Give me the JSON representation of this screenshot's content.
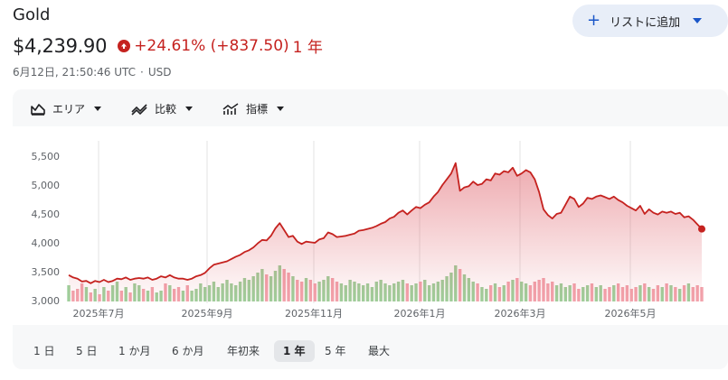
{
  "header": {
    "title": "Gold",
    "price": "$4,239.90",
    "change": "+24.61% (+837.50)",
    "change_period": "1 年",
    "timestamp": "6月12日, 21:50:46 UTC",
    "separator": "·",
    "currency": "USD",
    "follow_label": "リストに追加",
    "colors": {
      "down": "#c5221f",
      "accent": "#1a56c8"
    }
  },
  "toolbar": {
    "area_label": "エリア",
    "compare_label": "比較",
    "indicator_label": "指標"
  },
  "ranges": [
    "1 日",
    "5 日",
    "1 か月",
    "6 か月",
    "年初来",
    "1 年",
    "5 年",
    "最大"
  ],
  "active_range": "1 年",
  "chart_data": {
    "type": "area",
    "y_ticks": [
      "5,500",
      "5,000",
      "4,500",
      "4,000",
      "3,500",
      "3,000"
    ],
    "ylim": [
      3000,
      5500
    ],
    "x_labels": [
      "2025年7月",
      "2025年9月",
      "2025年11月",
      "2026年1月",
      "2026年3月",
      "2026年5月"
    ],
    "line_color": "#c5221f",
    "points": [
      3440,
      3400,
      3380,
      3330,
      3340,
      3300,
      3340,
      3320,
      3360,
      3320,
      3340,
      3380,
      3370,
      3400,
      3360,
      3380,
      3390,
      3380,
      3400,
      3360,
      3380,
      3420,
      3400,
      3440,
      3400,
      3380,
      3380,
      3360,
      3380,
      3420,
      3440,
      3480,
      3560,
      3620,
      3640,
      3660,
      3680,
      3720,
      3760,
      3790,
      3840,
      3870,
      3920,
      3990,
      4050,
      4040,
      4120,
      4250,
      4340,
      4220,
      4100,
      4120,
      4020,
      3980,
      4020,
      4010,
      4000,
      4060,
      4080,
      4180,
      4150,
      4100,
      4110,
      4120,
      4140,
      4160,
      4210,
      4220,
      4240,
      4260,
      4290,
      4330,
      4360,
      4420,
      4450,
      4520,
      4560,
      4490,
      4560,
      4620,
      4600,
      4660,
      4700,
      4800,
      4880,
      5000,
      5100,
      5200,
      5380,
      4900,
      4960,
      4980,
      5060,
      5000,
      5020,
      5100,
      5080,
      5200,
      5180,
      5240,
      5220,
      5300,
      5160,
      5200,
      5260,
      5220,
      5100,
      4880,
      4580,
      4480,
      4420,
      4500,
      4520,
      4660,
      4800,
      4760,
      4620,
      4680,
      4780,
      4760,
      4800,
      4820,
      4790,
      4760,
      4800,
      4740,
      4700,
      4640,
      4600,
      4560,
      4640,
      4500,
      4580,
      4520,
      4490,
      4540,
      4520,
      4540,
      4500,
      4520,
      4440,
      4460,
      4400,
      4320,
      4239.9
    ],
    "volume": [
      0.45,
      0.3,
      0.35,
      0.5,
      0.4,
      0.25,
      0.35,
      0.2,
      0.4,
      0.3,
      0.45,
      0.55,
      0.3,
      0.4,
      0.25,
      0.5,
      0.45,
      0.35,
      0.3,
      0.4,
      0.25,
      0.3,
      0.5,
      0.45,
      0.35,
      0.4,
      0.3,
      0.45,
      0.3,
      0.35,
      0.5,
      0.4,
      0.45,
      0.55,
      0.4,
      0.5,
      0.6,
      0.5,
      0.45,
      0.55,
      0.65,
      0.6,
      0.7,
      0.8,
      0.9,
      0.75,
      0.7,
      0.85,
      1.0,
      0.9,
      0.8,
      0.7,
      0.6,
      0.55,
      0.65,
      0.6,
      0.5,
      0.55,
      0.6,
      0.7,
      0.65,
      0.55,
      0.5,
      0.45,
      0.6,
      0.55,
      0.5,
      0.45,
      0.5,
      0.4,
      0.55,
      0.6,
      0.5,
      0.45,
      0.5,
      0.55,
      0.6,
      0.5,
      0.45,
      0.5,
      0.55,
      0.6,
      0.45,
      0.5,
      0.55,
      0.6,
      0.7,
      0.8,
      1.0,
      0.9,
      0.75,
      0.65,
      0.55,
      0.5,
      0.4,
      0.35,
      0.45,
      0.5,
      0.4,
      0.45,
      0.55,
      0.6,
      0.65,
      0.55,
      0.5,
      0.45,
      0.55,
      0.6,
      0.65,
      0.5,
      0.55,
      0.45,
      0.5,
      0.4,
      0.45,
      0.5,
      0.35,
      0.4,
      0.45,
      0.5,
      0.4,
      0.45,
      0.35,
      0.4,
      0.45,
      0.5,
      0.4,
      0.45,
      0.35,
      0.4,
      0.45,
      0.5,
      0.4,
      0.35,
      0.45,
      0.4,
      0.5,
      0.45,
      0.4,
      0.35,
      0.45,
      0.5,
      0.4,
      0.45,
      0.4
    ],
    "volume_up_color": "#9fcf9b",
    "volume_down_color": "#f2a3ac"
  }
}
